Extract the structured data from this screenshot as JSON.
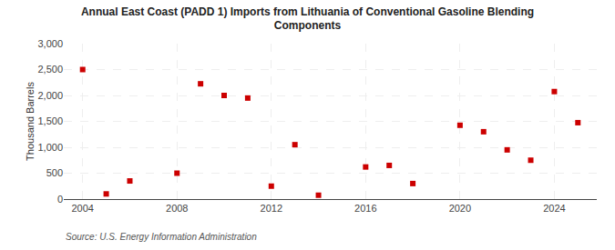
{
  "chart_data": {
    "type": "scatter",
    "title": "Annual East Coast (PADD 1) Imports from Lithuania of Conventional Gasoline Blending\nComponents",
    "ylabel": "Thousand Barrels",
    "annotations": [
      "Source: U.S. Energy Information Administration"
    ],
    "x": [
      2004,
      2005,
      2006,
      2008,
      2009,
      2010,
      2011,
      2012,
      2013,
      2014,
      2016,
      2017,
      2018,
      2020,
      2021,
      2022,
      2023,
      2024,
      2025
    ],
    "values": [
      2500,
      100,
      350,
      500,
      2225,
      2000,
      1950,
      250,
      1050,
      75,
      620,
      650,
      300,
      1425,
      1300,
      950,
      750,
      2075,
      1475
    ],
    "color": "#cc0000",
    "marker": "square",
    "xlim": [
      2003.2,
      2025.8
    ],
    "xticks": [
      2004,
      2008,
      2012,
      2016,
      2020,
      2024
    ],
    "ylim": [
      0,
      3000
    ],
    "yticks": [
      0,
      500,
      {
        "value": 1000,
        "label": "1,000"
      },
      {
        "value": 1500,
        "label": "1,500"
      },
      {
        "value": 2000,
        "label": "2,000"
      },
      {
        "value": 2500,
        "label": "2,500"
      },
      {
        "value": 3000,
        "label": "3,000"
      }
    ],
    "grid": true
  }
}
